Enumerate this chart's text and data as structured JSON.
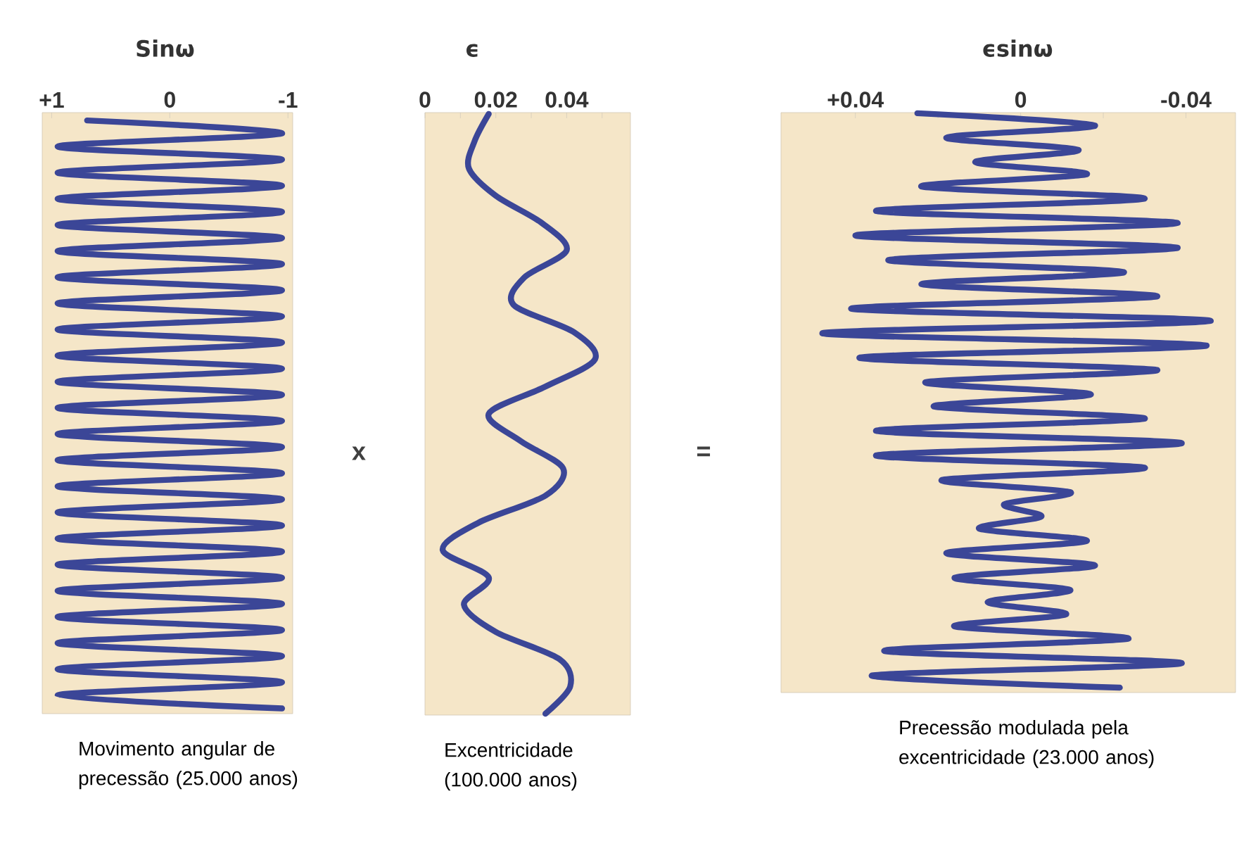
{
  "chart_data": [
    {
      "type": "line",
      "orientation": "horizontal",
      "title": "Sinω",
      "xlabel": "Movimento angular de precessão (25.000 anos)",
      "annotations": [
        "x"
      ],
      "categories": [
        null,
        null,
        null,
        null,
        null,
        null,
        null,
        null,
        null,
        null,
        null,
        null,
        null,
        null,
        null,
        null,
        null,
        null,
        null,
        null,
        null,
        null,
        null,
        null,
        null,
        null,
        null,
        null,
        null,
        null,
        null,
        null,
        null,
        null,
        null,
        null,
        null,
        null,
        null,
        null,
        null,
        null,
        null,
        null,
        null,
        null
      ],
      "values": [
        0.7,
        -0.95,
        0.95,
        -0.95,
        0.95,
        -0.95,
        0.95,
        -0.95,
        0.95,
        -0.95,
        0.95,
        -0.95,
        0.95,
        -0.95,
        0.95,
        -0.95,
        0.95,
        -0.95,
        0.95,
        -0.95,
        0.95,
        -0.95,
        0.95,
        -0.95,
        0.95,
        -0.95,
        0.95,
        -0.95,
        0.95,
        -0.95,
        0.95,
        -0.95,
        0.95,
        -0.95,
        0.95,
        -0.95,
        0.95,
        -0.95,
        0.95,
        -0.95,
        0.95,
        -0.95,
        0.95,
        -0.95,
        0.95,
        -0.95
      ],
      "color": "#3b4697",
      "xlim": [
        1.08,
        -1.04
      ],
      "xticks": [
        {
          "value": 1,
          "label": "+1"
        },
        0,
        -1
      ]
    },
    {
      "type": "line",
      "orientation": "horizontal",
      "title": "ϵ",
      "xlabel": "Excentricidade (100.000 anos)",
      "annotations": [
        "="
      ],
      "categories": [
        null,
        null,
        null,
        null,
        null,
        null,
        null,
        null,
        null,
        null,
        null,
        null,
        null,
        null,
        null,
        null,
        null,
        null,
        null,
        null,
        null,
        null,
        null
      ],
      "values": [
        0.018,
        0.014,
        0.0124,
        0.02,
        0.033,
        0.04,
        0.028,
        0.025,
        0.042,
        0.048,
        0.034,
        0.018,
        0.027,
        0.039,
        0.034,
        0.015,
        0.005,
        0.018,
        0.011,
        0.02,
        0.038,
        0.041,
        0.034
      ],
      "color": "#3b4697",
      "xlim": [
        0,
        0.058
      ],
      "xticks": [
        0,
        {
          "value": 0.01,
          "label": null
        },
        0.02,
        {
          "value": 0.03,
          "label": null
        },
        0.04,
        {
          "value": 0.05,
          "label": null
        }
      ]
    },
    {
      "type": "line",
      "orientation": "horizontal",
      "title": "ϵsinω",
      "xlabel": "Precessão modulada pela excentricidade (23.000 anos)",
      "categories": [
        null,
        null,
        null,
        null,
        null,
        null,
        null,
        null,
        null,
        null,
        null,
        null,
        null,
        null,
        null,
        null,
        null,
        null,
        null,
        null,
        null,
        null,
        null,
        null,
        null,
        null,
        null,
        null,
        null,
        null,
        null,
        null,
        null,
        null,
        null,
        null,
        null,
        null,
        null,
        null,
        null,
        null,
        null,
        null,
        null,
        null,
        null,
        null
      ],
      "values": [
        0.025,
        -0.018,
        0.018,
        -0.014,
        0.011,
        -0.016,
        0.024,
        -0.03,
        0.035,
        -0.038,
        0.04,
        -0.038,
        0.032,
        -0.025,
        0.024,
        -0.033,
        0.041,
        -0.046,
        0.048,
        -0.045,
        0.039,
        -0.033,
        0.023,
        -0.017,
        0.021,
        -0.03,
        0.035,
        -0.039,
        0.035,
        -0.03,
        0.019,
        -0.012,
        0.004,
        -0.005,
        0.01,
        -0.016,
        0.018,
        -0.018,
        0.016,
        -0.012,
        0.008,
        -0.011,
        0.016,
        -0.026,
        0.033,
        -0.039,
        0.036,
        -0.024
      ],
      "color": "#3b4697",
      "xlim": [
        0.058,
        -0.052
      ],
      "xticks": [
        {
          "value": 0.04,
          "label": "+0.04"
        },
        {
          "value": 0.02,
          "label": null
        },
        0,
        {
          "value": -0.02,
          "label": null
        },
        -0.04
      ]
    }
  ]
}
